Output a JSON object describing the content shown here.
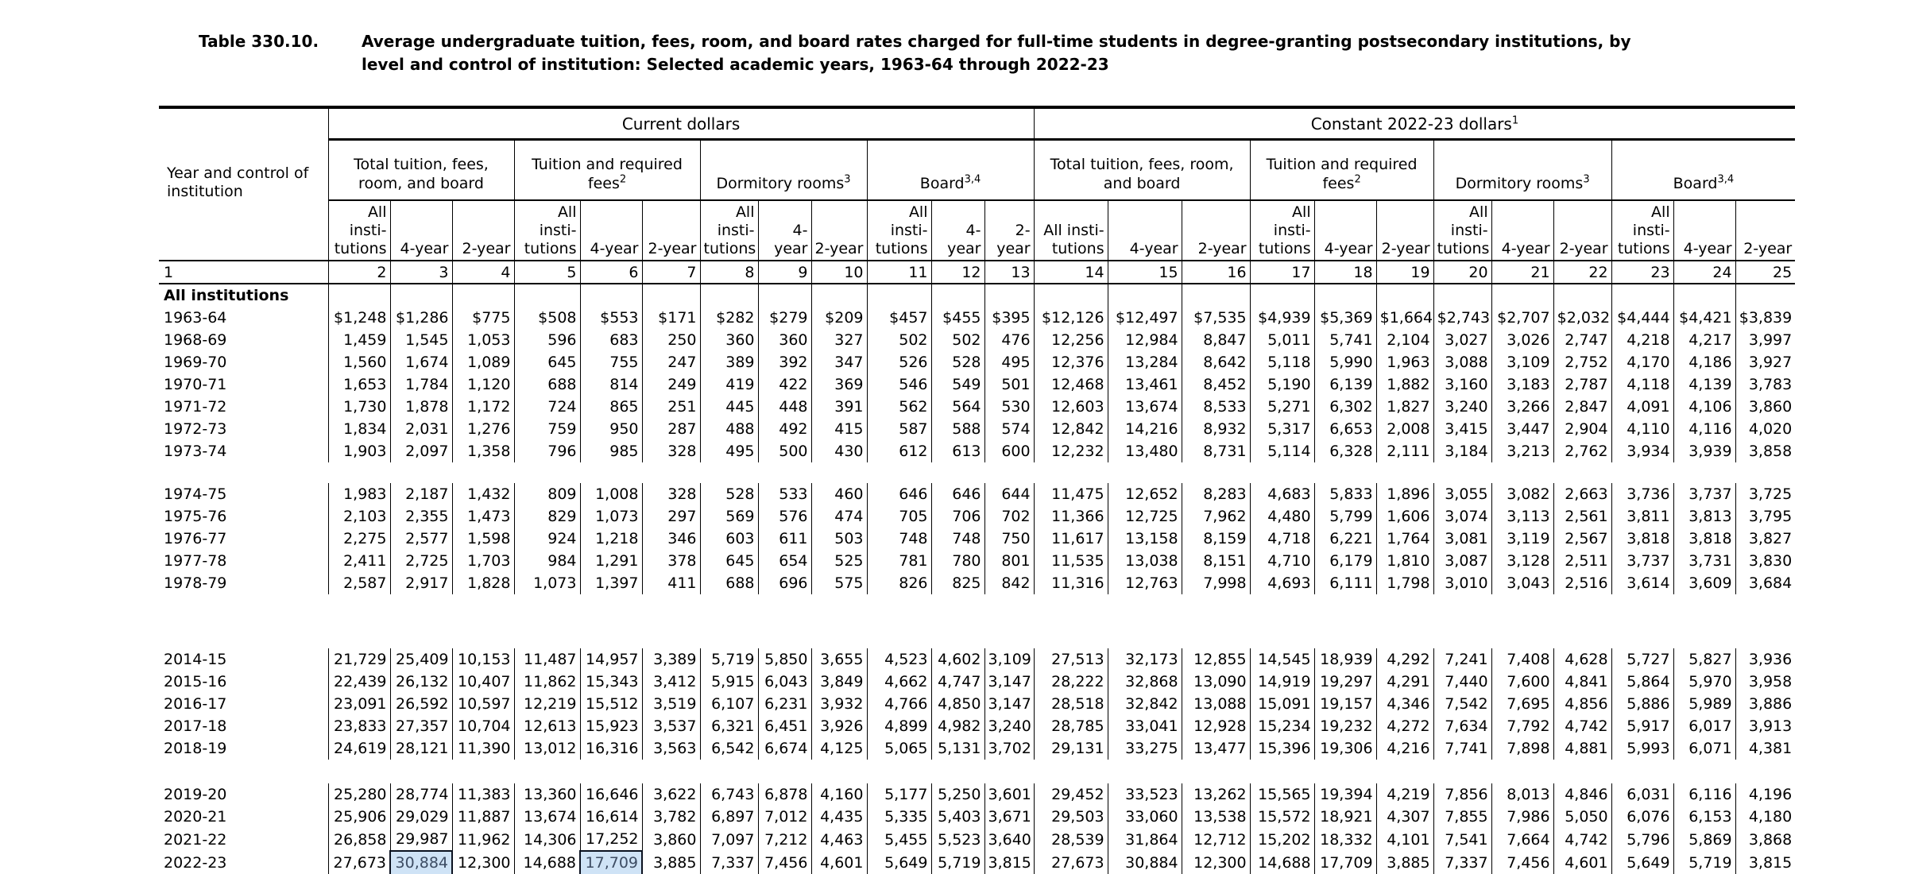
{
  "title": {
    "label": "Table 330.10.",
    "text": "Average undergraduate tuition, fees, room, and board rates charged for full-time students in degree-granting postsecondary institutions, by level and control of institution: Selected academic years, 1963-64 through 2022-23"
  },
  "header": {
    "stub_label": "Year and control of institution",
    "spans": [
      {
        "label": "Current dollars",
        "sup": ""
      },
      {
        "label": "Constant 2022-23 dollars",
        "sup": "1"
      }
    ],
    "groups": [
      {
        "label": "Total tuition, fees, room, and board",
        "sup": ""
      },
      {
        "label": "Tuition and required fees",
        "sup": "2"
      },
      {
        "label": "Dormitory rooms",
        "sup": "3"
      },
      {
        "label": "Board",
        "sup": "3,4"
      }
    ],
    "subcols": [
      "All insti-tutions",
      "4-year",
      "2-year"
    ],
    "col_numbers": [
      "1",
      "2",
      "3",
      "4",
      "5",
      "6",
      "7",
      "8",
      "9",
      "10",
      "11",
      "12",
      "13",
      "14",
      "15",
      "16",
      "17",
      "18",
      "19",
      "20",
      "21",
      "22",
      "23",
      "24",
      "25"
    ]
  },
  "highlight_colors": {
    "fill": "#cfe3f6",
    "border": "#0b1220"
  },
  "sections": [
    {
      "label": "All institutions",
      "rows": [
        {
          "year": "1963-64",
          "values": [
            "$1,248",
            "$1,286",
            "$775",
            "$508",
            "$553",
            "$171",
            "$282",
            "$279",
            "$209",
            "$457",
            "$455",
            "$395",
            "$12,126",
            "$12,497",
            "$7,535",
            "$4,939",
            "$5,369",
            "$1,664",
            "$2,743",
            "$2,707",
            "$2,032",
            "$4,444",
            "$4,421",
            "$3,839"
          ]
        },
        {
          "year": "1968-69",
          "values": [
            "1,459",
            "1,545",
            "1,053",
            "596",
            "683",
            "250",
            "360",
            "360",
            "327",
            "502",
            "502",
            "476",
            "12,256",
            "12,984",
            "8,847",
            "5,011",
            "5,741",
            "2,104",
            "3,027",
            "3,026",
            "2,747",
            "4,218",
            "4,217",
            "3,997"
          ]
        },
        {
          "year": "1969-70",
          "values": [
            "1,560",
            "1,674",
            "1,089",
            "645",
            "755",
            "247",
            "389",
            "392",
            "347",
            "526",
            "528",
            "495",
            "12,376",
            "13,284",
            "8,642",
            "5,118",
            "5,990",
            "1,963",
            "3,088",
            "3,109",
            "2,752",
            "4,170",
            "4,186",
            "3,927"
          ]
        },
        {
          "year": "1970-71",
          "values": [
            "1,653",
            "1,784",
            "1,120",
            "688",
            "814",
            "249",
            "419",
            "422",
            "369",
            "546",
            "549",
            "501",
            "12,468",
            "13,461",
            "8,452",
            "5,190",
            "6,139",
            "1,882",
            "3,160",
            "3,183",
            "2,787",
            "4,118",
            "4,139",
            "3,783"
          ]
        },
        {
          "year": "1971-72",
          "values": [
            "1,730",
            "1,878",
            "1,172",
            "724",
            "865",
            "251",
            "445",
            "448",
            "391",
            "562",
            "564",
            "530",
            "12,603",
            "13,674",
            "8,533",
            "5,271",
            "6,302",
            "1,827",
            "3,240",
            "3,266",
            "2,847",
            "4,091",
            "4,106",
            "3,860"
          ]
        },
        {
          "year": "1972-73",
          "values": [
            "1,834",
            "2,031",
            "1,276",
            "759",
            "950",
            "287",
            "488",
            "492",
            "415",
            "587",
            "588",
            "574",
            "12,842",
            "14,216",
            "8,932",
            "5,317",
            "6,653",
            "2,008",
            "3,415",
            "3,447",
            "2,904",
            "4,110",
            "4,116",
            "4,020"
          ]
        },
        {
          "year": "1973-74",
          "values": [
            "1,903",
            "2,097",
            "1,358",
            "796",
            "985",
            "328",
            "495",
            "500",
            "430",
            "612",
            "613",
            "600",
            "12,232",
            "13,480",
            "8,731",
            "5,114",
            "6,328",
            "2,111",
            "3,184",
            "3,213",
            "2,762",
            "3,934",
            "3,939",
            "3,858"
          ]
        }
      ]
    },
    {
      "label": "",
      "rows": [
        {
          "year": "1974-75",
          "values": [
            "1,983",
            "2,187",
            "1,432",
            "809",
            "1,008",
            "328",
            "528",
            "533",
            "460",
            "646",
            "646",
            "644",
            "11,475",
            "12,652",
            "8,283",
            "4,683",
            "5,833",
            "1,896",
            "3,055",
            "3,082",
            "2,663",
            "3,736",
            "3,737",
            "3,725"
          ]
        },
        {
          "year": "1975-76",
          "values": [
            "2,103",
            "2,355",
            "1,473",
            "829",
            "1,073",
            "297",
            "569",
            "576",
            "474",
            "705",
            "706",
            "702",
            "11,366",
            "12,725",
            "7,962",
            "4,480",
            "5,799",
            "1,606",
            "3,074",
            "3,113",
            "2,561",
            "3,811",
            "3,813",
            "3,795"
          ]
        },
        {
          "year": "1976-77",
          "values": [
            "2,275",
            "2,577",
            "1,598",
            "924",
            "1,218",
            "346",
            "603",
            "611",
            "503",
            "748",
            "748",
            "750",
            "11,617",
            "13,158",
            "8,159",
            "4,718",
            "6,221",
            "1,764",
            "3,081",
            "3,119",
            "2,567",
            "3,818",
            "3,818",
            "3,827"
          ]
        },
        {
          "year": "1977-78",
          "values": [
            "2,411",
            "2,725",
            "1,703",
            "984",
            "1,291",
            "378",
            "645",
            "654",
            "525",
            "781",
            "780",
            "801",
            "11,535",
            "13,038",
            "8,151",
            "4,710",
            "6,179",
            "1,810",
            "3,087",
            "3,128",
            "2,511",
            "3,737",
            "3,731",
            "3,830"
          ]
        },
        {
          "year": "1978-79",
          "values": [
            "2,587",
            "2,917",
            "1,828",
            "1,073",
            "1,397",
            "411",
            "688",
            "696",
            "575",
            "826",
            "825",
            "842",
            "11,316",
            "12,763",
            "7,998",
            "4,693",
            "6,111",
            "1,798",
            "3,010",
            "3,043",
            "2,516",
            "3,614",
            "3,609",
            "3,684"
          ]
        }
      ]
    },
    {
      "label": "",
      "rows": [
        {
          "year": "2014-15",
          "values": [
            "21,729",
            "25,409",
            "10,153",
            "11,487",
            "14,957",
            "3,389",
            "5,719",
            "5,850",
            "3,655",
            "4,523",
            "4,602",
            "3,109",
            "27,513",
            "32,173",
            "12,855",
            "14,545",
            "18,939",
            "4,292",
            "7,241",
            "7,408",
            "4,628",
            "5,727",
            "5,827",
            "3,936"
          ]
        },
        {
          "year": "2015-16",
          "values": [
            "22,439",
            "26,132",
            "10,407",
            "11,862",
            "15,343",
            "3,412",
            "5,915",
            "6,043",
            "3,849",
            "4,662",
            "4,747",
            "3,147",
            "28,222",
            "32,868",
            "13,090",
            "14,919",
            "19,297",
            "4,291",
            "7,440",
            "7,600",
            "4,841",
            "5,864",
            "5,970",
            "3,958"
          ]
        },
        {
          "year": "2016-17",
          "values": [
            "23,091",
            "26,592",
            "10,597",
            "12,219",
            "15,512",
            "3,519",
            "6,107",
            "6,231",
            "3,932",
            "4,766",
            "4,850",
            "3,147",
            "28,518",
            "32,842",
            "13,088",
            "15,091",
            "19,157",
            "4,346",
            "7,542",
            "7,695",
            "4,856",
            "5,886",
            "5,989",
            "3,886"
          ]
        },
        {
          "year": "2017-18",
          "values": [
            "23,833",
            "27,357",
            "10,704",
            "12,613",
            "15,923",
            "3,537",
            "6,321",
            "6,451",
            "3,926",
            "4,899",
            "4,982",
            "3,240",
            "28,785",
            "33,041",
            "12,928",
            "15,234",
            "19,232",
            "4,272",
            "7,634",
            "7,792",
            "4,742",
            "5,917",
            "6,017",
            "3,913"
          ]
        },
        {
          "year": "2018-19",
          "values": [
            "24,619",
            "28,121",
            "11,390",
            "13,012",
            "16,316",
            "3,563",
            "6,542",
            "6,674",
            "4,125",
            "5,065",
            "5,131",
            "3,702",
            "29,131",
            "33,275",
            "13,477",
            "15,396",
            "19,306",
            "4,216",
            "7,741",
            "7,898",
            "4,881",
            "5,993",
            "6,071",
            "4,381"
          ]
        }
      ]
    },
    {
      "label": "",
      "rows": [
        {
          "year": "2019-20",
          "values": [
            "25,280",
            "28,774",
            "11,383",
            "13,360",
            "16,646",
            "3,622",
            "6,743",
            "6,878",
            "4,160",
            "5,177",
            "5,250",
            "3,601",
            "29,452",
            "33,523",
            "13,262",
            "15,565",
            "19,394",
            "4,219",
            "7,856",
            "8,013",
            "4,846",
            "6,031",
            "6,116",
            "4,196"
          ]
        },
        {
          "year": "2020-21",
          "values": [
            "25,906",
            "29,029",
            "11,887",
            "13,674",
            "16,614",
            "3,782",
            "6,897",
            "7,012",
            "4,435",
            "5,335",
            "5,403",
            "3,671",
            "29,503",
            "33,060",
            "13,538",
            "15,572",
            "18,921",
            "4,307",
            "7,855",
            "7,986",
            "5,050",
            "6,076",
            "6,153",
            "4,180"
          ]
        },
        {
          "year": "2021-22",
          "values": [
            "26,858",
            "29,987",
            "11,962",
            "14,306",
            "17,252",
            "3,860",
            "7,097",
            "7,212",
            "4,463",
            "5,455",
            "5,523",
            "3,640",
            "28,539",
            "31,864",
            "12,712",
            "15,202",
            "18,332",
            "4,101",
            "7,541",
            "7,664",
            "4,742",
            "5,796",
            "5,869",
            "3,868"
          ]
        },
        {
          "year": "2022-23",
          "values": [
            "27,673",
            "30,884",
            "12,300",
            "14,688",
            "17,709",
            "3,885",
            "7,337",
            "7,456",
            "4,601",
            "5,649",
            "5,719",
            "3,815",
            "27,673",
            "30,884",
            "12,300",
            "14,688",
            "17,709",
            "3,885",
            "7,337",
            "7,456",
            "4,601",
            "5,649",
            "5,719",
            "3,815"
          ],
          "highlight": [
            1,
            4
          ]
        }
      ]
    }
  ]
}
